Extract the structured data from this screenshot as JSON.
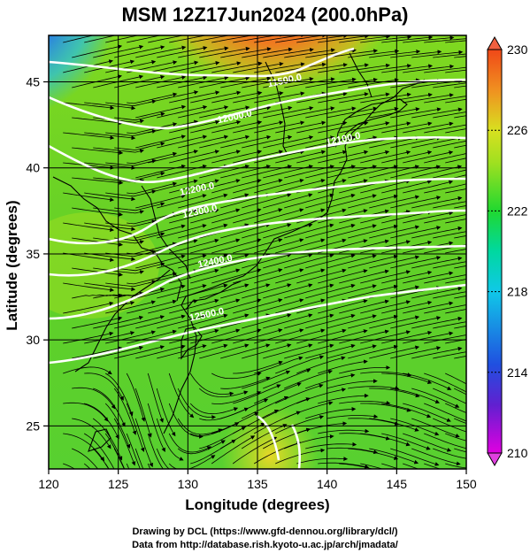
{
  "title": "MSM 12Z17Jun2024 (200.0hPa)",
  "xlabel": "Longitude (degrees)",
  "ylabel": "Latitude  (degrees)",
  "credits": {
    "line1": "Drawing by DCL (https://www.gfd-dennou.org/library/dcl/)",
    "line2": "Data from http://database.rish.kyoto-u.ac.jp/arch/jmadata/"
  },
  "map": {
    "lon_range": [
      120,
      150
    ],
    "lat_range": [
      22.5,
      47.7
    ],
    "lon_ticks": [
      120,
      125,
      130,
      135,
      140,
      145,
      150
    ],
    "lat_ticks": [
      25,
      30,
      35,
      40,
      45
    ],
    "grid": true,
    "contour_labels": [
      {
        "text": "11500.0",
        "lon": 137.0,
        "lat": 44.9
      },
      {
        "text": "12000.0",
        "lon": 133.4,
        "lat": 42.8
      },
      {
        "text": "12100.0",
        "lon": 141.2,
        "lat": 41.5
      },
      {
        "text": "12200.0",
        "lon": 130.7,
        "lat": 38.6
      },
      {
        "text": "12300.0",
        "lon": 130.9,
        "lat": 37.3
      },
      {
        "text": "12400.0",
        "lon": 132.0,
        "lat": 34.4
      },
      {
        "text": "12500.0",
        "lon": 131.4,
        "lat": 31.3
      }
    ]
  },
  "colorbar": {
    "ticks": [
      "230",
      "226",
      "222",
      "218",
      "214",
      "210"
    ],
    "min": 210,
    "max": 230,
    "colors": [
      "#e000e0",
      "#6020d0",
      "#2050e0",
      "#10b0e8",
      "#00d8a0",
      "#20d830",
      "#80e020",
      "#d0e020",
      "#f0a020",
      "#f05018"
    ]
  }
}
